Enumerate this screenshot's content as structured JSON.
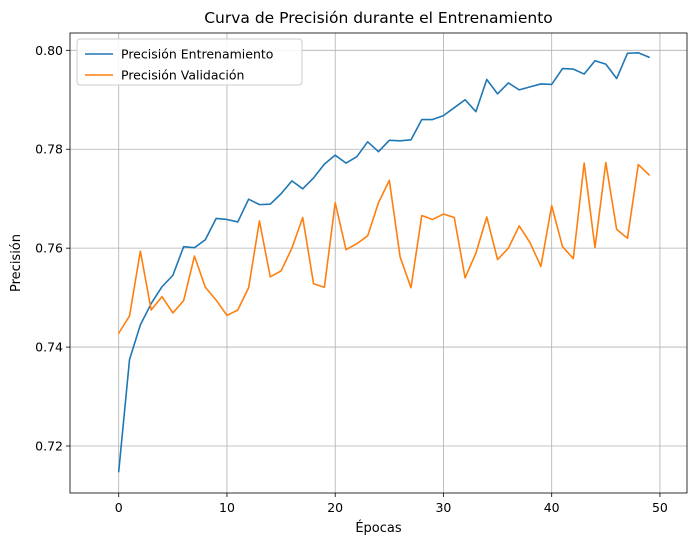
{
  "chart_data": {
    "type": "line",
    "title": "Curva de Precisión durante el Entrenamiento",
    "xlabel": "Épocas",
    "ylabel": "Precisión",
    "xlim": [
      -4.5,
      52.5
    ],
    "ylim": [
      0.7105,
      0.8035
    ],
    "xticks": [
      0,
      10,
      20,
      30,
      40,
      50
    ],
    "yticks": [
      0.72,
      0.74,
      0.76,
      0.78,
      0.8
    ],
    "grid": true,
    "legend_position": "top-left",
    "x": [
      0,
      1,
      2,
      3,
      4,
      5,
      6,
      7,
      8,
      9,
      10,
      11,
      12,
      13,
      14,
      15,
      16,
      17,
      18,
      19,
      20,
      21,
      22,
      23,
      24,
      25,
      26,
      27,
      28,
      29,
      30,
      31,
      32,
      33,
      34,
      35,
      36,
      37,
      38,
      39,
      40,
      41,
      42,
      43,
      44,
      45,
      46,
      47,
      48,
      49
    ],
    "series": [
      {
        "name": "Precisión Entrenamiento",
        "color": "#1f77b4",
        "values": [
          0.7148,
          0.7375,
          0.7445,
          0.7488,
          0.7522,
          0.7545,
          0.7603,
          0.7601,
          0.7617,
          0.766,
          0.7658,
          0.7653,
          0.7699,
          0.7688,
          0.7689,
          0.771,
          0.7736,
          0.772,
          0.7742,
          0.777,
          0.7788,
          0.7772,
          0.7785,
          0.7815,
          0.7795,
          0.7818,
          0.7817,
          0.7819,
          0.786,
          0.786,
          0.7868,
          0.7884,
          0.79,
          0.7876,
          0.7941,
          0.7912,
          0.7934,
          0.792,
          0.7926,
          0.7932,
          0.7931,
          0.7963,
          0.7962,
          0.7952,
          0.7979,
          0.7972,
          0.7943,
          0.7994,
          0.7995,
          0.7986
        ]
      },
      {
        "name": "Precisión Validación",
        "color": "#ff7f0e",
        "values": [
          0.7428,
          0.7463,
          0.7594,
          0.7475,
          0.7502,
          0.7469,
          0.7494,
          0.7584,
          0.7521,
          0.7495,
          0.7464,
          0.7475,
          0.752,
          0.7655,
          0.7542,
          0.7554,
          0.76,
          0.7662,
          0.7528,
          0.7521,
          0.7692,
          0.7597,
          0.7609,
          0.7625,
          0.7692,
          0.7737,
          0.7582,
          0.752,
          0.7666,
          0.7658,
          0.7669,
          0.7662,
          0.754,
          0.759,
          0.7663,
          0.7577,
          0.76,
          0.7645,
          0.7611,
          0.7563,
          0.7686,
          0.7603,
          0.7579,
          0.7772,
          0.7601,
          0.7773,
          0.7638,
          0.762,
          0.7769,
          0.7748
        ]
      }
    ]
  }
}
